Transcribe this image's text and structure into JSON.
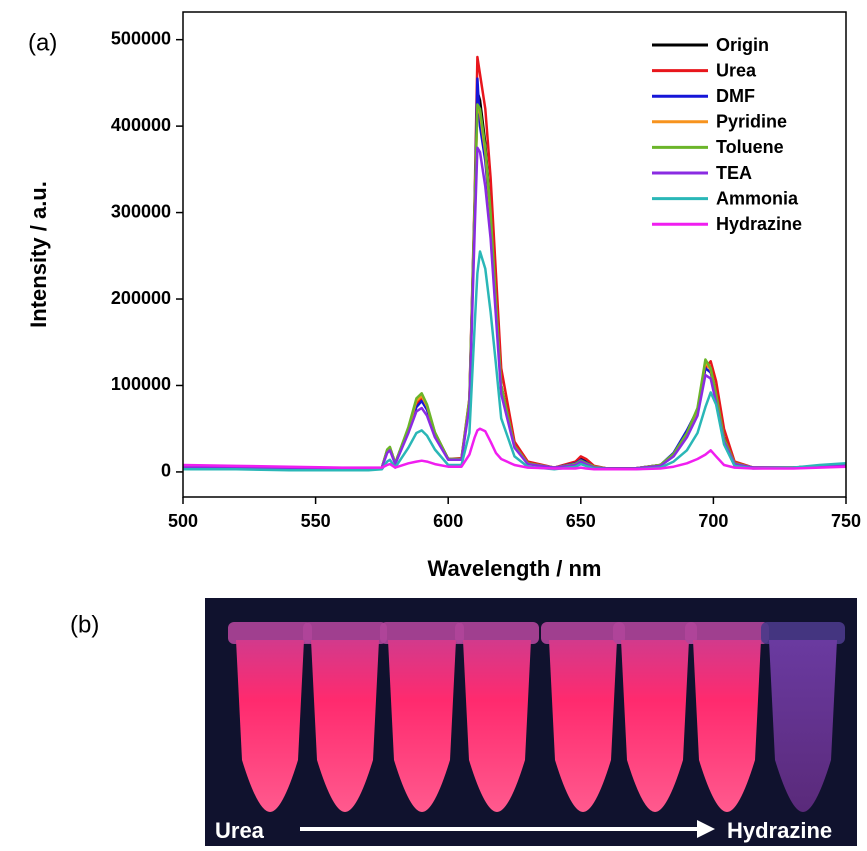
{
  "panel_labels": {
    "a": "(a)",
    "b": "(b)"
  },
  "chart_data": {
    "type": "line",
    "xlabel": "Wavelength / nm",
    "ylabel": "Intensity / a.u.",
    "x": [
      500,
      520,
      540,
      560,
      570,
      575,
      577,
      578,
      580,
      585,
      588,
      590,
      592,
      595,
      600,
      605,
      608,
      610,
      611,
      612,
      614,
      616,
      618,
      620,
      625,
      630,
      640,
      648,
      650,
      652,
      655,
      660,
      670,
      680,
      685,
      690,
      694,
      697,
      699,
      701,
      704,
      708,
      715,
      730,
      740,
      750
    ],
    "series": [
      {
        "name": "Origin",
        "color": "#000000",
        "values": [
          5000,
          5000,
          4000,
          3000,
          3000,
          5000,
          25000,
          28000,
          10000,
          50000,
          80000,
          85000,
          75000,
          45000,
          15000,
          15000,
          80000,
          300000,
          440000,
          430000,
          380000,
          300000,
          200000,
          100000,
          30000,
          10000,
          5000,
          10000,
          15000,
          12000,
          6000,
          4000,
          4000,
          8000,
          20000,
          45000,
          70000,
          125000,
          120000,
          90000,
          40000,
          10000,
          5000,
          5000,
          7000,
          8000
        ]
      },
      {
        "name": "Urea",
        "color": "#e8161c",
        "values": [
          5000,
          5000,
          4000,
          3000,
          3000,
          5000,
          25000,
          28000,
          10000,
          50000,
          78000,
          85000,
          75000,
          45000,
          15000,
          16000,
          85000,
          320000,
          480000,
          460000,
          420000,
          340000,
          230000,
          120000,
          35000,
          12000,
          5000,
          12000,
          18000,
          15000,
          7000,
          4000,
          4000,
          8000,
          20000,
          45000,
          70000,
          120000,
          128000,
          105000,
          50000,
          12000,
          5000,
          5000,
          7000,
          8000
        ]
      },
      {
        "name": "DMF",
        "color": "#1515d8",
        "values": [
          5000,
          5000,
          4000,
          3000,
          3000,
          5000,
          24000,
          27000,
          10000,
          48000,
          75000,
          82000,
          72000,
          44000,
          15000,
          15000,
          80000,
          310000,
          455000,
          400000,
          360000,
          290000,
          190000,
          95000,
          30000,
          10000,
          5000,
          10000,
          14000,
          11000,
          6000,
          4000,
          4000,
          8000,
          22000,
          48000,
          72000,
          120000,
          115000,
          88000,
          38000,
          10000,
          5000,
          5000,
          7000,
          8000
        ]
      },
      {
        "name": "Pyridine",
        "color": "#f7931e",
        "values": [
          5000,
          5000,
          4000,
          3000,
          3000,
          5000,
          25000,
          28000,
          10000,
          50000,
          82000,
          88000,
          76000,
          45000,
          15000,
          15000,
          82000,
          305000,
          420000,
          415000,
          370000,
          295000,
          195000,
          98000,
          30000,
          10000,
          5000,
          9000,
          13000,
          10000,
          6000,
          4000,
          4000,
          8000,
          20000,
          44000,
          72000,
          127000,
          118000,
          88000,
          38000,
          10000,
          5000,
          5000,
          7000,
          8000
        ]
      },
      {
        "name": "Toluene",
        "color": "#6bb52a",
        "values": [
          5000,
          5000,
          4000,
          3000,
          3000,
          5000,
          26000,
          29000,
          10000,
          52000,
          85000,
          91000,
          78000,
          46000,
          15000,
          15000,
          84000,
          310000,
          425000,
          420000,
          375000,
          300000,
          198000,
          100000,
          30000,
          10000,
          5000,
          9000,
          13000,
          10000,
          6000,
          4000,
          4000,
          8000,
          21000,
          45000,
          74000,
          130000,
          120000,
          90000,
          39000,
          10000,
          5000,
          5000,
          7000,
          8000
        ]
      },
      {
        "name": "TEA",
        "color": "#8a2be2",
        "values": [
          5000,
          5000,
          4000,
          3000,
          3000,
          5000,
          22000,
          25000,
          9000,
          45000,
          70000,
          74000,
          65000,
          40000,
          14000,
          14000,
          75000,
          280000,
          375000,
          370000,
          330000,
          270000,
          180000,
          90000,
          28000,
          9000,
          5000,
          8000,
          12000,
          9000,
          5000,
          4000,
          4000,
          7000,
          18000,
          40000,
          65000,
          112000,
          108000,
          80000,
          35000,
          9000,
          5000,
          5000,
          7000,
          8000
        ]
      },
      {
        "name": "Ammonia",
        "color": "#2ab7b7",
        "values": [
          3000,
          3000,
          2000,
          2000,
          2000,
          3000,
          12000,
          14000,
          5000,
          28000,
          45000,
          48000,
          42000,
          26000,
          8000,
          8000,
          45000,
          170000,
          230000,
          255000,
          235000,
          185000,
          125000,
          62000,
          18000,
          6000,
          3000,
          6000,
          9000,
          7000,
          4000,
          3000,
          3000,
          5000,
          12000,
          25000,
          45000,
          75000,
          92000,
          78000,
          32000,
          7000,
          4000,
          5000,
          8000,
          10000
        ]
      },
      {
        "name": "Hydrazine",
        "color": "#f01ef0",
        "values": [
          8000,
          7000,
          6000,
          5000,
          5000,
          5000,
          8000,
          9000,
          5000,
          10000,
          12000,
          13000,
          12000,
          9000,
          6000,
          6000,
          20000,
          40000,
          48000,
          50000,
          47000,
          35000,
          22000,
          15000,
          8000,
          5000,
          4000,
          4000,
          5000,
          4000,
          3000,
          3000,
          3000,
          4000,
          6000,
          10000,
          15000,
          20000,
          25000,
          18000,
          8000,
          5000,
          4000,
          4000,
          5000,
          6000
        ]
      }
    ],
    "xlim": [
      500,
      750
    ],
    "xticks": [
      500,
      550,
      600,
      650,
      700,
      750
    ],
    "ylim": [
      -29000,
      532000
    ],
    "yticks": [
      0,
      100000,
      200000,
      300000,
      400000,
      500000
    ],
    "grid": false,
    "legend": "upper right"
  },
  "photo": {
    "start_label": "Urea",
    "end_label": "Hydrazine"
  }
}
